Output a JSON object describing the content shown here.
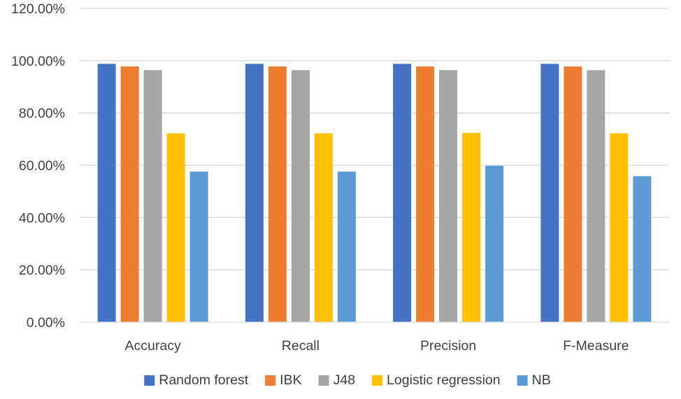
{
  "chart_data": {
    "type": "bar",
    "title": "",
    "xlabel": "",
    "ylabel": "",
    "categories": [
      "Accuracy",
      "Recall",
      "Precision",
      "F-Measure"
    ],
    "ylim": [
      0,
      120
    ],
    "yticks": [
      "0.00%",
      "20.00%",
      "40.00%",
      "60.00%",
      "80.00%",
      "100.00%",
      "120.00%"
    ],
    "grid": true,
    "legend_position": "bottom",
    "series": [
      {
        "name": "Random forest",
        "color": "#4472C4",
        "values": [
          98.8,
          98.8,
          98.8,
          98.8
        ]
      },
      {
        "name": "IBK",
        "color": "#ED7D31",
        "values": [
          97.8,
          97.8,
          97.8,
          97.8
        ]
      },
      {
        "name": "J48",
        "color": "#A5A5A5",
        "values": [
          96.4,
          96.4,
          96.4,
          96.4
        ]
      },
      {
        "name": "Logistic regression",
        "color": "#FFC000",
        "values": [
          72.2,
          72.2,
          72.4,
          72.2
        ]
      },
      {
        "name": "NB",
        "color": "#5B9BD5",
        "values": [
          57.6,
          57.6,
          59.8,
          55.8
        ]
      }
    ]
  }
}
